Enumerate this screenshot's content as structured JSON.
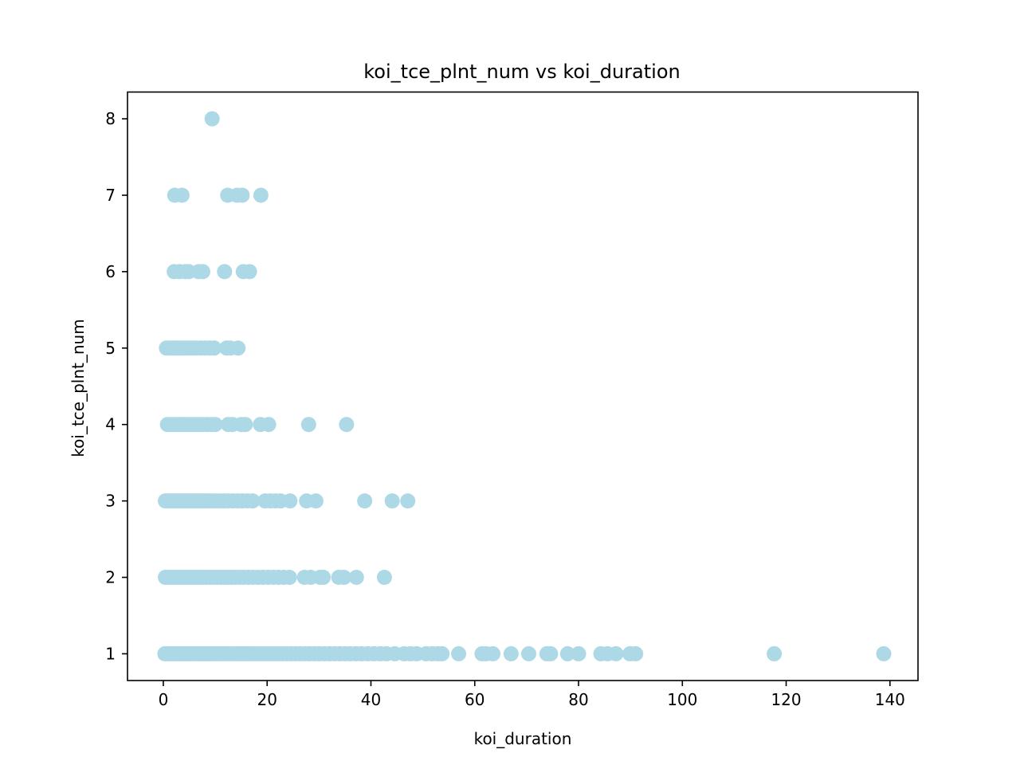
{
  "chart_data": {
    "type": "scatter",
    "title": "koi_tce_plnt_num vs koi_duration",
    "xlabel": "koi_duration",
    "ylabel": "koi_tce_plnt_num",
    "xlim": [
      -6.9,
      145.4
    ],
    "ylim": [
      0.65,
      8.35
    ],
    "x_ticks": [
      0,
      20,
      40,
      60,
      80,
      100,
      120,
      140
    ],
    "y_ticks": [
      1,
      2,
      3,
      4,
      5,
      6,
      7,
      8
    ],
    "grid": false,
    "legend": "none",
    "marker_color": "#add8e6",
    "series": [
      {
        "values": [
          {
            "x": 9.4,
            "y": 8
          },
          {
            "x": 2.2,
            "y": 7
          },
          {
            "x": 3.6,
            "y": 7
          },
          {
            "x": 12.4,
            "y": 7
          },
          {
            "x": 14.2,
            "y": 7
          },
          {
            "x": 15.2,
            "y": 7
          },
          {
            "x": 18.8,
            "y": 7
          },
          {
            "x": 2.1,
            "y": 6
          },
          {
            "x": 3.1,
            "y": 6
          },
          {
            "x": 4.2,
            "y": 6
          },
          {
            "x": 4.9,
            "y": 6
          },
          {
            "x": 6.8,
            "y": 6
          },
          {
            "x": 7.6,
            "y": 6
          },
          {
            "x": 11.8,
            "y": 6
          },
          {
            "x": 15.4,
            "y": 6
          },
          {
            "x": 16.6,
            "y": 6
          },
          {
            "x": 0.6,
            "y": 5
          },
          {
            "x": 1.2,
            "y": 5
          },
          {
            "x": 1.9,
            "y": 5
          },
          {
            "x": 2.5,
            "y": 5
          },
          {
            "x": 3.0,
            "y": 5
          },
          {
            "x": 3.6,
            "y": 5
          },
          {
            "x": 4.2,
            "y": 5
          },
          {
            "x": 4.9,
            "y": 5
          },
          {
            "x": 5.6,
            "y": 5
          },
          {
            "x": 6.3,
            "y": 5
          },
          {
            "x": 7.2,
            "y": 5
          },
          {
            "x": 8.1,
            "y": 5
          },
          {
            "x": 9.0,
            "y": 5
          },
          {
            "x": 9.8,
            "y": 5
          },
          {
            "x": 12.2,
            "y": 5
          },
          {
            "x": 12.9,
            "y": 5
          },
          {
            "x": 14.4,
            "y": 5
          },
          {
            "x": 0.8,
            "y": 4
          },
          {
            "x": 1.5,
            "y": 4
          },
          {
            "x": 2.2,
            "y": 4
          },
          {
            "x": 2.9,
            "y": 4
          },
          {
            "x": 3.5,
            "y": 4
          },
          {
            "x": 4.1,
            "y": 4
          },
          {
            "x": 4.8,
            "y": 4
          },
          {
            "x": 5.5,
            "y": 4
          },
          {
            "x": 6.2,
            "y": 4
          },
          {
            "x": 6.9,
            "y": 4
          },
          {
            "x": 7.6,
            "y": 4
          },
          {
            "x": 8.4,
            "y": 4
          },
          {
            "x": 9.2,
            "y": 4
          },
          {
            "x": 10.0,
            "y": 4
          },
          {
            "x": 12.5,
            "y": 4
          },
          {
            "x": 13.3,
            "y": 4
          },
          {
            "x": 15.0,
            "y": 4
          },
          {
            "x": 15.8,
            "y": 4
          },
          {
            "x": 18.7,
            "y": 4
          },
          {
            "x": 20.3,
            "y": 4
          },
          {
            "x": 28.0,
            "y": 4
          },
          {
            "x": 35.3,
            "y": 4
          },
          {
            "x": 0.4,
            "y": 3
          },
          {
            "x": 1.0,
            "y": 3
          },
          {
            "x": 1.6,
            "y": 3
          },
          {
            "x": 2.2,
            "y": 3
          },
          {
            "x": 2.8,
            "y": 3
          },
          {
            "x": 3.4,
            "y": 3
          },
          {
            "x": 4.0,
            "y": 3
          },
          {
            "x": 4.6,
            "y": 3
          },
          {
            "x": 5.2,
            "y": 3
          },
          {
            "x": 5.8,
            "y": 3
          },
          {
            "x": 6.4,
            "y": 3
          },
          {
            "x": 7.0,
            "y": 3
          },
          {
            "x": 7.6,
            "y": 3
          },
          {
            "x": 8.2,
            "y": 3
          },
          {
            "x": 8.9,
            "y": 3
          },
          {
            "x": 9.6,
            "y": 3
          },
          {
            "x": 10.3,
            "y": 3
          },
          {
            "x": 11.0,
            "y": 3
          },
          {
            "x": 11.8,
            "y": 3
          },
          {
            "x": 12.6,
            "y": 3
          },
          {
            "x": 13.4,
            "y": 3
          },
          {
            "x": 14.3,
            "y": 3
          },
          {
            "x": 15.2,
            "y": 3
          },
          {
            "x": 16.2,
            "y": 3
          },
          {
            "x": 17.2,
            "y": 3
          },
          {
            "x": 19.6,
            "y": 3
          },
          {
            "x": 20.6,
            "y": 3
          },
          {
            "x": 21.6,
            "y": 3
          },
          {
            "x": 22.6,
            "y": 3
          },
          {
            "x": 24.4,
            "y": 3
          },
          {
            "x": 27.6,
            "y": 3
          },
          {
            "x": 29.4,
            "y": 3
          },
          {
            "x": 38.8,
            "y": 3
          },
          {
            "x": 44.1,
            "y": 3
          },
          {
            "x": 47.1,
            "y": 3
          },
          {
            "x": 0.4,
            "y": 2
          },
          {
            "x": 1.0,
            "y": 2
          },
          {
            "x": 1.6,
            "y": 2
          },
          {
            "x": 2.2,
            "y": 2
          },
          {
            "x": 2.8,
            "y": 2
          },
          {
            "x": 3.4,
            "y": 2
          },
          {
            "x": 4.0,
            "y": 2
          },
          {
            "x": 4.6,
            "y": 2
          },
          {
            "x": 5.2,
            "y": 2
          },
          {
            "x": 5.8,
            "y": 2
          },
          {
            "x": 6.4,
            "y": 2
          },
          {
            "x": 7.0,
            "y": 2
          },
          {
            "x": 7.6,
            "y": 2
          },
          {
            "x": 8.3,
            "y": 2
          },
          {
            "x": 9.0,
            "y": 2
          },
          {
            "x": 9.7,
            "y": 2
          },
          {
            "x": 10.4,
            "y": 2
          },
          {
            "x": 11.1,
            "y": 2
          },
          {
            "x": 11.8,
            "y": 2
          },
          {
            "x": 12.5,
            "y": 2
          },
          {
            "x": 13.2,
            "y": 2
          },
          {
            "x": 13.9,
            "y": 2
          },
          {
            "x": 14.7,
            "y": 2
          },
          {
            "x": 15.5,
            "y": 2
          },
          {
            "x": 16.4,
            "y": 2
          },
          {
            "x": 17.3,
            "y": 2
          },
          {
            "x": 18.2,
            "y": 2
          },
          {
            "x": 19.2,
            "y": 2
          },
          {
            "x": 20.2,
            "y": 2
          },
          {
            "x": 21.2,
            "y": 2
          },
          {
            "x": 22.2,
            "y": 2
          },
          {
            "x": 23.2,
            "y": 2
          },
          {
            "x": 24.3,
            "y": 2
          },
          {
            "x": 27.2,
            "y": 2
          },
          {
            "x": 28.4,
            "y": 2
          },
          {
            "x": 30.2,
            "y": 2
          },
          {
            "x": 30.8,
            "y": 2
          },
          {
            "x": 33.8,
            "y": 2
          },
          {
            "x": 34.8,
            "y": 2
          },
          {
            "x": 37.2,
            "y": 2
          },
          {
            "x": 42.6,
            "y": 2
          },
          {
            "x": 0.3,
            "y": 1
          },
          {
            "x": 0.9,
            "y": 1
          },
          {
            "x": 1.5,
            "y": 1
          },
          {
            "x": 2.1,
            "y": 1
          },
          {
            "x": 2.7,
            "y": 1
          },
          {
            "x": 3.3,
            "y": 1
          },
          {
            "x": 3.9,
            "y": 1
          },
          {
            "x": 4.5,
            "y": 1
          },
          {
            "x": 5.1,
            "y": 1
          },
          {
            "x": 5.7,
            "y": 1
          },
          {
            "x": 6.3,
            "y": 1
          },
          {
            "x": 6.9,
            "y": 1
          },
          {
            "x": 7.5,
            "y": 1
          },
          {
            "x": 8.1,
            "y": 1
          },
          {
            "x": 8.7,
            "y": 1
          },
          {
            "x": 9.3,
            "y": 1
          },
          {
            "x": 9.9,
            "y": 1
          },
          {
            "x": 10.6,
            "y": 1
          },
          {
            "x": 11.3,
            "y": 1
          },
          {
            "x": 12.0,
            "y": 1
          },
          {
            "x": 12.7,
            "y": 1
          },
          {
            "x": 13.4,
            "y": 1
          },
          {
            "x": 14.1,
            "y": 1
          },
          {
            "x": 14.8,
            "y": 1
          },
          {
            "x": 15.5,
            "y": 1
          },
          {
            "x": 16.2,
            "y": 1
          },
          {
            "x": 16.9,
            "y": 1
          },
          {
            "x": 17.6,
            "y": 1
          },
          {
            "x": 18.3,
            "y": 1
          },
          {
            "x": 19.0,
            "y": 1
          },
          {
            "x": 19.8,
            "y": 1
          },
          {
            "x": 20.6,
            "y": 1
          },
          {
            "x": 21.4,
            "y": 1
          },
          {
            "x": 22.2,
            "y": 1
          },
          {
            "x": 23.0,
            "y": 1
          },
          {
            "x": 23.8,
            "y": 1
          },
          {
            "x": 24.6,
            "y": 1
          },
          {
            "x": 25.5,
            "y": 1
          },
          {
            "x": 26.4,
            "y": 1
          },
          {
            "x": 27.3,
            "y": 1
          },
          {
            "x": 28.2,
            "y": 1
          },
          {
            "x": 29.1,
            "y": 1
          },
          {
            "x": 30.0,
            "y": 1
          },
          {
            "x": 31.0,
            "y": 1
          },
          {
            "x": 32.0,
            "y": 1
          },
          {
            "x": 33.0,
            "y": 1
          },
          {
            "x": 34.0,
            "y": 1
          },
          {
            "x": 35.0,
            "y": 1
          },
          {
            "x": 36.0,
            "y": 1
          },
          {
            "x": 37.1,
            "y": 1
          },
          {
            "x": 38.2,
            "y": 1
          },
          {
            "x": 39.4,
            "y": 1
          },
          {
            "x": 40.6,
            "y": 1
          },
          {
            "x": 41.8,
            "y": 1
          },
          {
            "x": 43.0,
            "y": 1
          },
          {
            "x": 44.6,
            "y": 1
          },
          {
            "x": 46.4,
            "y": 1
          },
          {
            "x": 47.6,
            "y": 1
          },
          {
            "x": 48.8,
            "y": 1
          },
          {
            "x": 50.6,
            "y": 1
          },
          {
            "x": 51.8,
            "y": 1
          },
          {
            "x": 52.9,
            "y": 1
          },
          {
            "x": 53.7,
            "y": 1
          },
          {
            "x": 56.9,
            "y": 1
          },
          {
            "x": 61.4,
            "y": 1
          },
          {
            "x": 62.2,
            "y": 1
          },
          {
            "x": 63.5,
            "y": 1
          },
          {
            "x": 67.0,
            "y": 1
          },
          {
            "x": 70.4,
            "y": 1
          },
          {
            "x": 73.9,
            "y": 1
          },
          {
            "x": 74.6,
            "y": 1
          },
          {
            "x": 77.9,
            "y": 1
          },
          {
            "x": 80.0,
            "y": 1
          },
          {
            "x": 84.3,
            "y": 1
          },
          {
            "x": 85.6,
            "y": 1
          },
          {
            "x": 87.2,
            "y": 1
          },
          {
            "x": 89.9,
            "y": 1
          },
          {
            "x": 91.0,
            "y": 1
          },
          {
            "x": 117.7,
            "y": 1
          },
          {
            "x": 138.8,
            "y": 1
          }
        ]
      }
    ]
  }
}
